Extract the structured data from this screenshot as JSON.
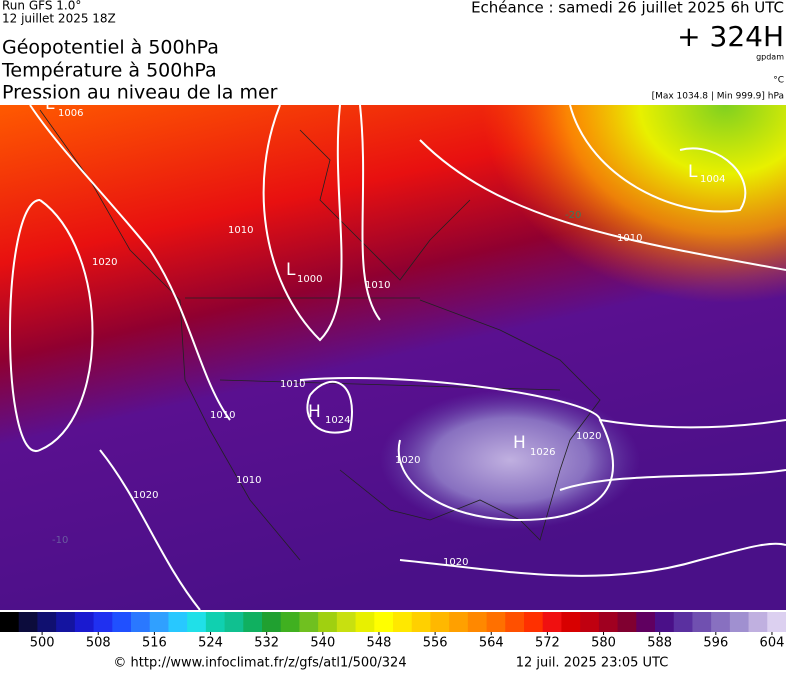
{
  "header": {
    "run": "Run GFS 1.0°",
    "run_date": "12 juillet 2025 18Z",
    "titles": [
      "Géopotentiel à 500hPa",
      "Température à 500hPa",
      "Pression au niveau de la mer"
    ],
    "valid": "Echéance : samedi 26 juillet 2025 6h UTC",
    "lead": "+ 324H",
    "unit": "gpdam",
    "temp_unit": "°C",
    "pressure_range": "[Max 1034.8 | Min 999.9] hPa"
  },
  "map": {
    "labels": [
      "1006",
      "1010",
      "1020",
      "1000",
      "1010",
      "1010",
      "1010",
      "1024",
      "1020",
      "1026",
      "1020",
      "1020",
      "1004",
      "1010",
      "-20",
      "-10",
      "1010",
      "1020"
    ],
    "highs_lows": [
      "L",
      "L",
      "H",
      "H",
      "L"
    ]
  },
  "colorbar": {
    "lim": [
      494,
      606
    ],
    "ticks": [
      500,
      508,
      516,
      524,
      532,
      540,
      548,
      556,
      564,
      572,
      580,
      588,
      596,
      604
    ],
    "colors": [
      "#000000",
      "#0c0c3c",
      "#101070",
      "#1414a0",
      "#1a1ad0",
      "#2030f0",
      "#2050ff",
      "#2a78ff",
      "#30a0ff",
      "#28c8ff",
      "#20e0e8",
      "#10d0b0",
      "#10c090",
      "#10b060",
      "#20a030",
      "#40b020",
      "#70c020",
      "#a0d010",
      "#c8e010",
      "#e8f000",
      "#ffff00",
      "#ffe800",
      "#ffd000",
      "#ffb800",
      "#ffa000",
      "#ff8800",
      "#ff7000",
      "#ff5000",
      "#ff3000",
      "#f01010",
      "#d80000",
      "#c00010",
      "#a00020",
      "#800030",
      "#600060",
      "#4a1088",
      "#5a30a0",
      "#7050b0",
      "#8870c0",
      "#a090d0",
      "#c0b0e0",
      "#dcd0f0"
    ]
  },
  "footer": {
    "url": "© http://www.infoclimat.fr/z/gfs/atl1/500/324",
    "date": "12 juil. 2025 23:05 UTC"
  }
}
